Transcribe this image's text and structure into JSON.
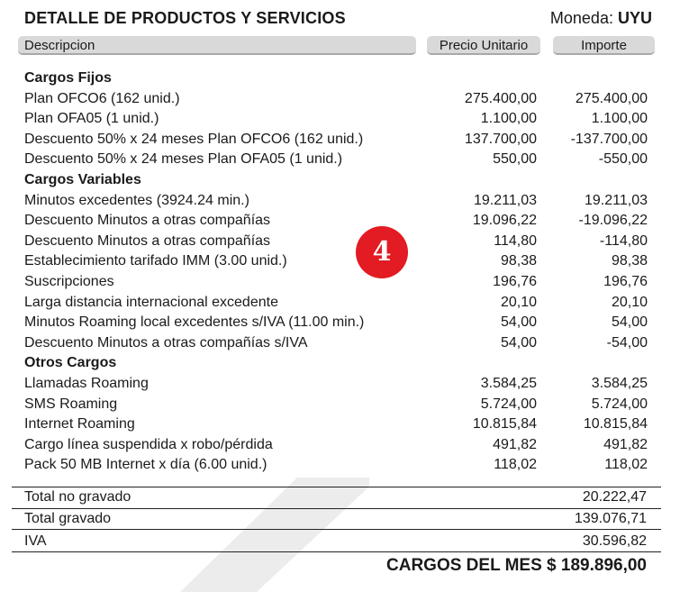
{
  "header": {
    "title": "DETALLE DE PRODUCTOS Y SERVICIOS",
    "currency_label": "Moneda:",
    "currency_value": "UYU"
  },
  "columns": {
    "description": "Descripcion",
    "unit_price": "Precio Unitario",
    "amount": "Importe"
  },
  "sections": [
    {
      "title": "Cargos Fijos",
      "rows": [
        {
          "desc": "Plan OFCO6 (162 unid.)",
          "unit": "275.400,00",
          "amount": "275.400,00"
        },
        {
          "desc": "Plan OFA05 (1 unid.)",
          "unit": "1.100,00",
          "amount": "1.100,00"
        },
        {
          "desc": "Descuento 50% x 24 meses Plan OFCO6 (162 unid.)",
          "unit": "137.700,00",
          "amount": "-137.700,00"
        },
        {
          "desc": "Descuento 50% x 24 meses Plan OFA05 (1 unid.)",
          "unit": "550,00",
          "amount": "-550,00"
        }
      ]
    },
    {
      "title": "Cargos Variables",
      "rows": [
        {
          "desc": "Minutos excedentes (3924.24 min.)",
          "unit": "19.211,03",
          "amount": "19.211,03"
        },
        {
          "desc": "Descuento Minutos a otras compañías",
          "unit": "19.096,22",
          "amount": "-19.096,22"
        },
        {
          "desc": "Descuento Minutos a otras compañías",
          "unit": "114,80",
          "amount": "-114,80"
        },
        {
          "desc": "Establecimiento tarifado IMM (3.00 unid.)",
          "unit": "98,38",
          "amount": "98,38"
        },
        {
          "desc": "Suscripciones",
          "unit": "196,76",
          "amount": "196,76"
        },
        {
          "desc": "Larga distancia internacional excedente",
          "unit": "20,10",
          "amount": "20,10"
        },
        {
          "desc": "Minutos Roaming local excedentes s/IVA (11.00 min.)",
          "unit": "54,00",
          "amount": "54,00"
        },
        {
          "desc": "Descuento Minutos a otras compañías s/IVA",
          "unit": "54,00",
          "amount": "-54,00"
        }
      ]
    },
    {
      "title": "Otros Cargos",
      "rows": [
        {
          "desc": "Llamadas Roaming",
          "unit": "3.584,25",
          "amount": "3.584,25"
        },
        {
          "desc": "SMS Roaming",
          "unit": "5.724,00",
          "amount": "5.724,00"
        },
        {
          "desc": "Internet Roaming",
          "unit": "10.815,84",
          "amount": "10.815,84"
        },
        {
          "desc": "Cargo línea suspendida x robo/pérdida",
          "unit": "491,82",
          "amount": "491,82"
        },
        {
          "desc": "Pack 50 MB Internet x día (6.00 unid.)",
          "unit": "118,02",
          "amount": "118,02"
        }
      ]
    }
  ],
  "badge": {
    "number": "4",
    "color": "#e31b23"
  },
  "totals": [
    {
      "label": "Total no gravado",
      "value": "20.222,47"
    },
    {
      "label": "Total gravado",
      "value": "139.076,71"
    },
    {
      "label": "IVA",
      "value": "30.596,82"
    }
  ],
  "grand_total": "CARGOS DEL MES $ 189.896,00",
  "colors": {
    "header_bar": "#d9d9d9",
    "badge": "#e31b23",
    "watermark": "#ececec"
  }
}
